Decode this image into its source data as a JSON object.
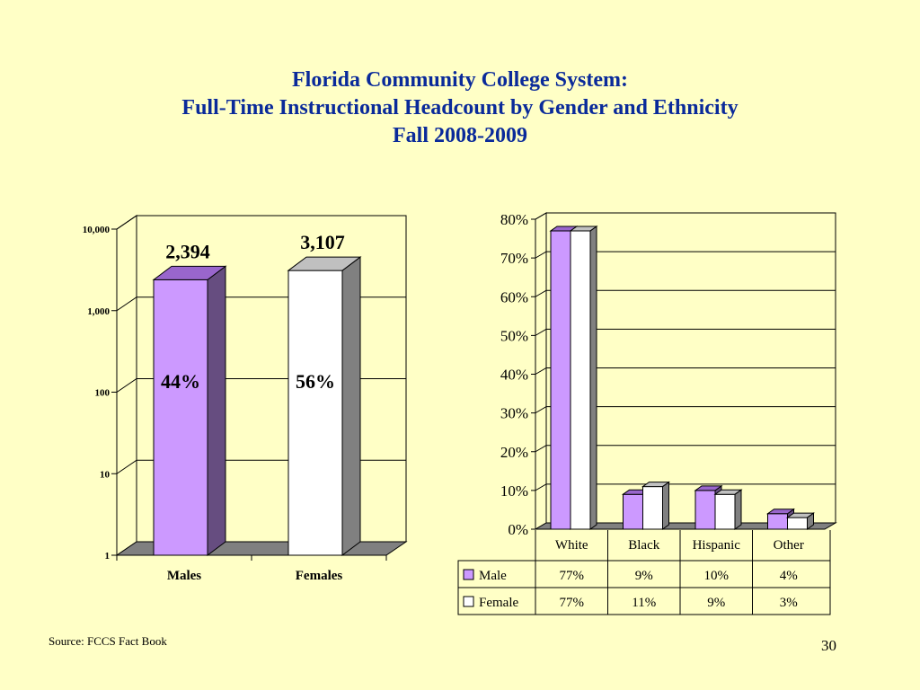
{
  "title": {
    "line1": "Florida Community College System:",
    "line2": "Full-Time Instructional Headcount by Gender and Ethnicity",
    "line3": "Fall 2008-2009"
  },
  "colors": {
    "male": "#cc99ff",
    "male_side": "#664d80",
    "female": "#ffffff",
    "female_side": "#808080",
    "title": "#0a2a9a"
  },
  "chart_data": [
    {
      "type": "bar",
      "scale": "log",
      "ylim": [
        1,
        10000
      ],
      "yticks": [
        "1",
        "10",
        "100",
        "1,000",
        "10,000"
      ],
      "categories": [
        "Males",
        "Females"
      ],
      "values": [
        2394,
        3107
      ],
      "value_labels": [
        "2,394",
        "3,107"
      ],
      "percent_labels": [
        "44%",
        "56%"
      ],
      "grid": true
    },
    {
      "type": "bar",
      "ylim": [
        0,
        80
      ],
      "yticks": [
        "0%",
        "10%",
        "20%",
        "30%",
        "40%",
        "50%",
        "60%",
        "70%",
        "80%"
      ],
      "categories": [
        "White",
        "Black",
        "Hispanic",
        "Other"
      ],
      "series": [
        {
          "name": "Male",
          "values": [
            77,
            9,
            10,
            4
          ],
          "labels": [
            "77%",
            "9%",
            "10%",
            "4%"
          ]
        },
        {
          "name": "Female",
          "values": [
            77,
            11,
            9,
            3
          ],
          "labels": [
            "77%",
            "11%",
            "9%",
            "3%"
          ]
        }
      ],
      "grid": true,
      "legend": "data-table"
    }
  ],
  "source": "Source: FCCS Fact Book",
  "page_number": "30"
}
